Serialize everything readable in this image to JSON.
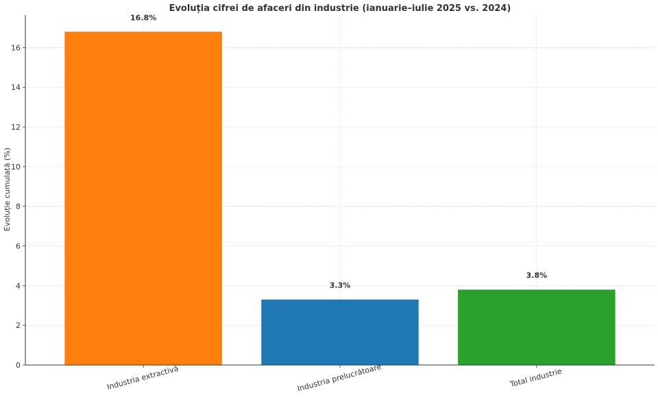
{
  "chart_data": {
    "type": "bar",
    "title": "Evoluția cifrei de afaceri din industrie (ianuarie–iulie 2025 vs. 2024)",
    "xlabel": "",
    "ylabel": "Evoluție cumulată (%)",
    "categories": [
      "Industria extractivă",
      "Industria prelucrătoare",
      "Total industrie"
    ],
    "values": [
      16.8,
      3.3,
      3.8
    ],
    "value_labels": [
      "16.8%",
      "3.3%",
      "3.8%"
    ],
    "colors": [
      "#ff7f0e",
      "#1f77b4",
      "#2ca02c"
    ],
    "ylim": [
      0,
      17.64
    ],
    "yticks": [
      0,
      2,
      4,
      6,
      8,
      10,
      12,
      14,
      16
    ],
    "grid": true,
    "legend": "none"
  }
}
